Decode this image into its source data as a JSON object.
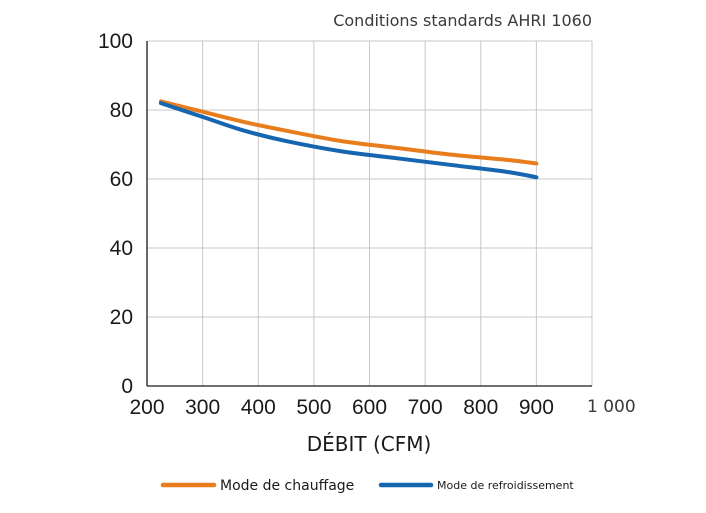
{
  "chart_data": {
    "type": "line",
    "title": "",
    "subtitle": "Conditions standards AHRI 1060",
    "xlabel": "DÉBIT (CFM)",
    "ylabel": "",
    "xlim": [
      200,
      1000
    ],
    "ylim": [
      0,
      100
    ],
    "x_ticks": [
      200,
      300,
      400,
      500,
      600,
      700,
      800,
      900,
      1000
    ],
    "x_tick_labels": [
      "200",
      "300",
      "400",
      "500",
      "600",
      "700",
      "800",
      "900",
      "1 000"
    ],
    "y_ticks": [
      0,
      20,
      40,
      60,
      80,
      100
    ],
    "y_tick_labels": [
      "0",
      "20",
      "40",
      "60",
      "80",
      "100"
    ],
    "grid": true,
    "legend_position": "bottom",
    "series": [
      {
        "name": "Mode de chauffage",
        "color": "#e87d1e",
        "x": [
          225,
          300,
          375,
          450,
          550,
          650,
          750,
          850,
          900
        ],
        "y": [
          82.5,
          79.5,
          76.5,
          74,
          71,
          69,
          67,
          65.5,
          64.5
        ]
      },
      {
        "name": "Mode de refroidissement",
        "color": "#1565b0",
        "x": [
          225,
          300,
          375,
          450,
          550,
          650,
          750,
          850,
          900
        ],
        "y": [
          82,
          78,
          74,
          71,
          68,
          66,
          64,
          62,
          60.5
        ]
      }
    ]
  }
}
